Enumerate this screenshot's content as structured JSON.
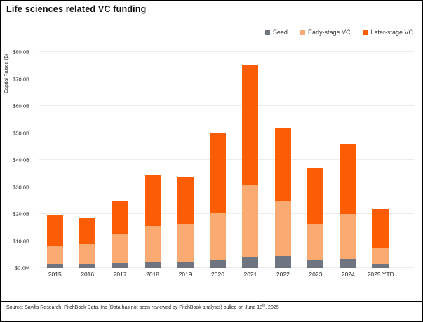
{
  "title": "Life sciences related VC funding",
  "legend": [
    {
      "label": "Seed",
      "color": "#6e7580"
    },
    {
      "label": "Early-stage VC",
      "color": "#fbab71"
    },
    {
      "label": "Later-stage VC",
      "color": "#fb5c04"
    }
  ],
  "chart_data": {
    "type": "bar",
    "stacked": true,
    "title": "Life sciences related VC funding",
    "xlabel": "",
    "ylabel": "Capital Raised ($)",
    "unit": "billions of USD",
    "ylim": [
      0,
      80
    ],
    "grid": true,
    "legend_position": "top-right",
    "y_ticks": [
      {
        "value": 0,
        "label": "$0.0M"
      },
      {
        "value": 10,
        "label": "$10.0B"
      },
      {
        "value": 20,
        "label": "$20.0B"
      },
      {
        "value": 30,
        "label": "$30.0B"
      },
      {
        "value": 40,
        "label": "$40.0B"
      },
      {
        "value": 50,
        "label": "$50.0B"
      },
      {
        "value": 60,
        "label": "$60.0B"
      },
      {
        "value": 70,
        "label": "$70.0B"
      },
      {
        "value": 80,
        "label": "$80.0B"
      }
    ],
    "categories": [
      "2015",
      "2016",
      "2017",
      "2018",
      "2019",
      "2020",
      "2021",
      "2022",
      "2023",
      "2024",
      "2025 YTD"
    ],
    "series": [
      {
        "name": "Seed",
        "color": "#6e7580",
        "values": [
          1.5,
          1.6,
          1.8,
          2.2,
          2.4,
          3.2,
          3.9,
          4.3,
          3.2,
          3.4,
          1.2
        ]
      },
      {
        "name": "Early-stage VC",
        "color": "#fbab71",
        "values": [
          6.6,
          7.2,
          10.8,
          13.5,
          13.7,
          17.3,
          27.0,
          20.5,
          13.2,
          16.6,
          6.3
        ]
      },
      {
        "name": "Later-stage VC",
        "color": "#fb5c04",
        "values": [
          11.7,
          9.7,
          12.3,
          18.7,
          17.4,
          29.3,
          44.1,
          26.8,
          20.6,
          26.1,
          14.4
        ]
      }
    ],
    "totals": [
      19.8,
      18.5,
      24.9,
      34.4,
      33.5,
      49.8,
      75.0,
      51.6,
      37.0,
      46.1,
      21.9
    ]
  },
  "source": {
    "prefix": "Source: Savills Research, PitchBook Data, Inc (Data has not been reviewed by PitchBook analysts) pulled on June 18",
    "superscript": "th",
    "suffix": ", 2025"
  }
}
